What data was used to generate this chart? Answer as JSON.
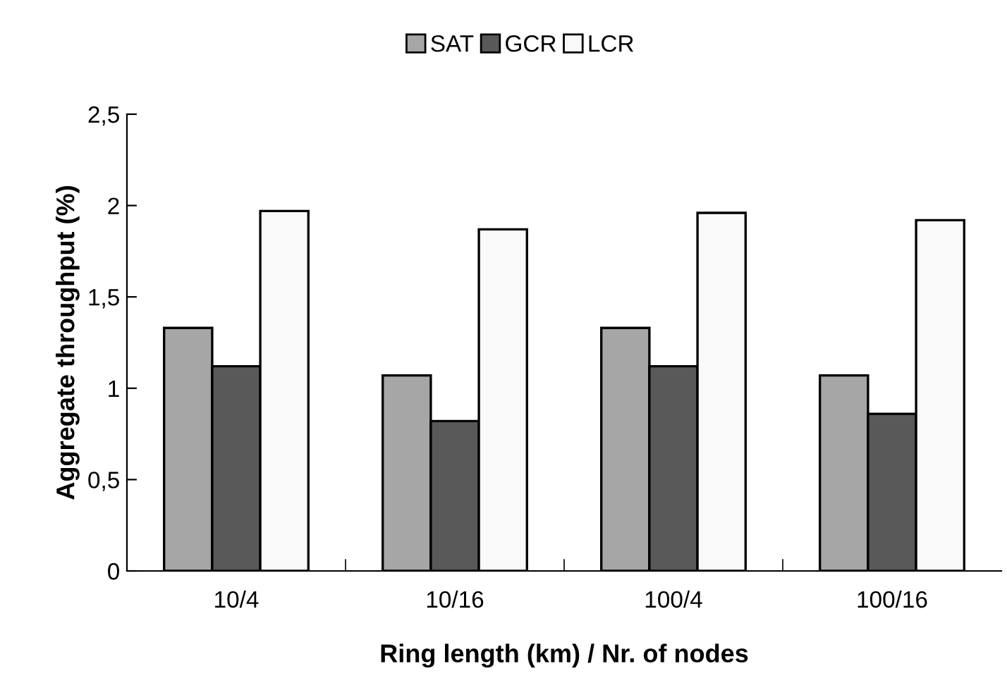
{
  "chart_data": {
    "type": "bar",
    "xlabel": "Ring length (km) / Nr. of nodes",
    "ylabel": "Aggregate throughput (%)",
    "categories": [
      "10/4",
      "10/16",
      "100/4",
      "100/16"
    ],
    "series": [
      {
        "name": "SAT",
        "color": "#a6a6a6",
        "values": [
          1.33,
          1.07,
          1.33,
          1.07
        ]
      },
      {
        "name": "GCR",
        "color": "#595959",
        "values": [
          1.12,
          0.82,
          1.12,
          0.86
        ]
      },
      {
        "name": "LCR",
        "color": "#f9f9f9",
        "values": [
          1.97,
          1.87,
          1.96,
          1.92
        ]
      }
    ],
    "ylim": [
      0,
      2.5
    ],
    "yticks": [
      0,
      {
        "value": 0.5,
        "label": "0,5"
      },
      1,
      {
        "value": 1.5,
        "label": "1,5"
      },
      2,
      {
        "value": 2.5,
        "label": "2,5"
      }
    ],
    "grid": false,
    "legend": "top"
  }
}
